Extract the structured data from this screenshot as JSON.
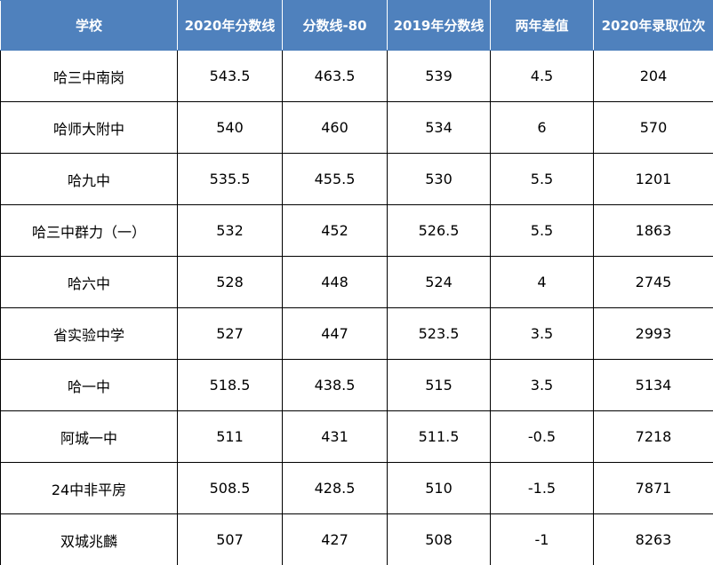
{
  "table": {
    "header": [
      "学校",
      "2020年分数线",
      "分数线-80",
      "2019年分数线",
      "两年差值",
      "2020年录取位次"
    ],
    "rows": [
      [
        "哈三中南岗",
        543.5,
        463.5,
        539,
        4.5,
        204
      ],
      [
        "哈师大附中",
        540,
        460,
        534,
        6,
        570
      ],
      [
        "哈九中",
        535.5,
        455.5,
        530,
        5.5,
        1201
      ],
      [
        "哈三中群力（一）",
        532,
        452,
        526.5,
        5.5,
        1863
      ],
      [
        "哈六中",
        528,
        448,
        524,
        4,
        2745
      ],
      [
        "省实验中学",
        527,
        447,
        523.5,
        3.5,
        2993
      ],
      [
        "哈一中",
        518.5,
        438.5,
        515,
        3.5,
        5134
      ],
      [
        "阿城一中",
        511,
        431,
        511.5,
        -0.5,
        7218
      ],
      [
        "24中非平房",
        508.5,
        428.5,
        510,
        -1.5,
        7871
      ],
      [
        "双城兆麟",
        507,
        427,
        508,
        -1,
        8263
      ]
    ]
  }
}
